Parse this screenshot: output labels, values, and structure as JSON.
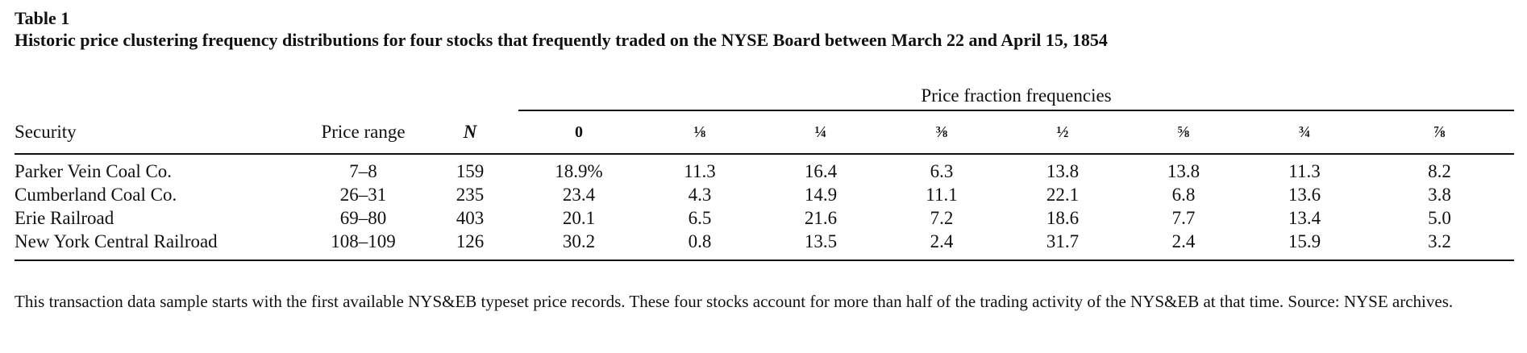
{
  "table_label": "Table 1",
  "table_title": "Historic price clustering frequency distributions for four stocks that frequently traded on the NYSE Board between March 22 and April 15, 1854",
  "group_header": "Price fraction frequencies",
  "headers": {
    "security": "Security",
    "price_range": "Price range",
    "n": "N",
    "fractions": [
      "0",
      "⅛",
      "¼",
      "⅜",
      "½",
      "⅝",
      "¾",
      "⅞"
    ]
  },
  "rows": [
    {
      "security": "Parker Vein Coal Co.",
      "price_range": "7–8",
      "n": "159",
      "values": [
        "18.9%",
        "11.3",
        "16.4",
        "6.3",
        "13.8",
        "13.8",
        "11.3",
        "8.2"
      ]
    },
    {
      "security": "Cumberland Coal Co.",
      "price_range": "26–31",
      "n": "235",
      "values": [
        "23.4",
        "4.3",
        "14.9",
        "11.1",
        "22.1",
        "6.8",
        "13.6",
        "3.8"
      ]
    },
    {
      "security": "Erie Railroad",
      "price_range": "69–80",
      "n": "403",
      "values": [
        "20.1",
        "6.5",
        "21.6",
        "7.2",
        "18.6",
        "7.7",
        "13.4",
        "5.0"
      ]
    },
    {
      "security": "New York Central Railroad",
      "price_range": "108–109",
      "n": "126",
      "values": [
        "30.2",
        "0.8",
        "13.5",
        "2.4",
        "31.7",
        "2.4",
        "15.9",
        "3.2"
      ]
    }
  ],
  "footnote": "This transaction data sample starts with the first available NYS&EB typeset price records. These four stocks account for more than half of the trading activity of the NYS&EB at that time. Source: NYSE archives."
}
